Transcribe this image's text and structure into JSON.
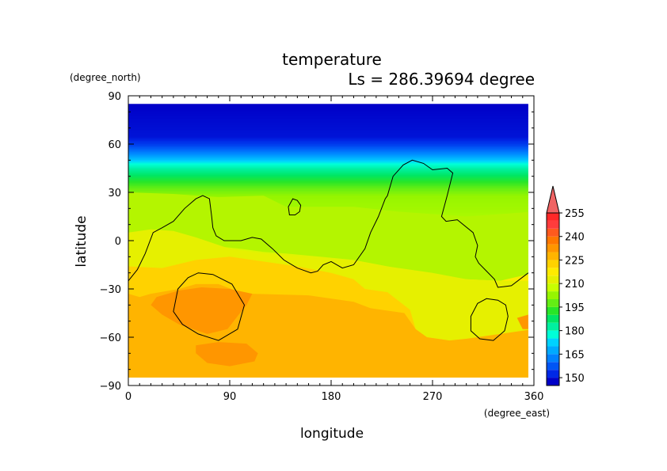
{
  "chart_data": {
    "type": "heatmap",
    "title": "temperature",
    "subtitle": "Ls = 286.39694 degree",
    "xlabel": "longitude",
    "ylabel": "latitude",
    "x_unit": "(degree_east)",
    "y_unit": "(degree_north)",
    "xlim": [
      0,
      360
    ],
    "ylim": [
      -90,
      90
    ],
    "x_ticks": [
      "0",
      "90",
      "180",
      "270",
      "360"
    ],
    "x_tick_values": [
      0,
      90,
      180,
      270,
      360
    ],
    "y_ticks": [
      "90",
      "60",
      "30",
      "0",
      "−30",
      "−60",
      "−90"
    ],
    "y_tick_values": [
      90,
      60,
      30,
      0,
      -30,
      -60,
      -90
    ],
    "data_lat_range": [
      -85,
      85
    ],
    "colorbar": {
      "levels": [
        145,
        150,
        155,
        160,
        165,
        170,
        175,
        180,
        185,
        190,
        195,
        200,
        205,
        210,
        215,
        220,
        225,
        230,
        235,
        240,
        245,
        250,
        255
      ],
      "labels": [
        "150",
        "165",
        "180",
        "195",
        "210",
        "225",
        "240",
        "255"
      ],
      "colors": [
        "#0000c8",
        "#0028e6",
        "#0055f5",
        "#0082ff",
        "#00aaff",
        "#00d2ff",
        "#00ffd8",
        "#00f0a0",
        "#00e664",
        "#28e628",
        "#64ee14",
        "#96f500",
        "#c8ff00",
        "#e6f000",
        "#ffeb00",
        "#ffd200",
        "#ffb400",
        "#ff9600",
        "#ff7800",
        "#ff5a1e",
        "#ff3c3c",
        "#ff2828"
      ],
      "over_color": "#f06464"
    },
    "fill_levels": [
      {
        "value": 215,
        "color": "#b4f500",
        "polygon": [
          [
            0,
            30
          ],
          [
            40,
            29
          ],
          [
            80,
            27
          ],
          [
            120,
            28
          ],
          [
            140,
            21
          ],
          [
            200,
            21
          ],
          [
            240,
            18
          ],
          [
            300,
            15
          ],
          [
            360,
            18
          ],
          [
            360,
            -20
          ],
          [
            330,
            -25
          ],
          [
            300,
            -24
          ],
          [
            260,
            -20
          ],
          [
            230,
            -16
          ],
          [
            200,
            -12
          ],
          [
            170,
            -10
          ],
          [
            140,
            -8
          ],
          [
            120,
            -7
          ],
          [
            100,
            -5
          ],
          [
            60,
            -2
          ],
          [
            30,
            -2
          ],
          [
            15,
            -5
          ],
          [
            0,
            -6
          ]
        ]
      },
      {
        "value": 220,
        "color": "#e6f000",
        "polygon": [
          [
            0,
            5
          ],
          [
            20,
            7
          ],
          [
            40,
            6
          ],
          [
            60,
            2
          ],
          [
            90,
            -5
          ],
          [
            120,
            -8
          ],
          [
            150,
            -10
          ],
          [
            180,
            -12
          ],
          [
            210,
            -14
          ],
          [
            240,
            -17
          ],
          [
            270,
            -20
          ],
          [
            300,
            -24
          ],
          [
            330,
            -25
          ],
          [
            360,
            -25
          ],
          [
            360,
            -90
          ],
          [
            0,
            -90
          ]
        ]
      },
      {
        "value": 225,
        "color": "#ffd200",
        "polygon": [
          [
            0,
            -16
          ],
          [
            30,
            -17
          ],
          [
            60,
            -12
          ],
          [
            90,
            -10
          ],
          [
            120,
            -13
          ],
          [
            150,
            -16
          ],
          [
            180,
            -20
          ],
          [
            200,
            -24
          ],
          [
            210,
            -30
          ],
          [
            230,
            -32
          ],
          [
            250,
            -43
          ],
          [
            255,
            -55
          ],
          [
            265,
            -60
          ],
          [
            285,
            -62
          ],
          [
            300,
            -61
          ],
          [
            330,
            -58
          ],
          [
            360,
            -55
          ],
          [
            360,
            -90
          ],
          [
            0,
            -90
          ]
        ]
      },
      {
        "value": 230,
        "color": "#ffb400",
        "polygon": [
          [
            0,
            -33
          ],
          [
            10,
            -35
          ],
          [
            20,
            -33
          ],
          [
            45,
            -30
          ],
          [
            60,
            -27
          ],
          [
            80,
            -27
          ],
          [
            95,
            -31
          ],
          [
            110,
            -33
          ],
          [
            160,
            -34
          ],
          [
            200,
            -38
          ],
          [
            215,
            -42
          ],
          [
            245,
            -45
          ],
          [
            255,
            -55
          ],
          [
            265,
            -60
          ],
          [
            285,
            -62
          ],
          [
            300,
            -61
          ],
          [
            330,
            -58
          ],
          [
            360,
            -55
          ],
          [
            360,
            -90
          ],
          [
            0,
            -90
          ]
        ]
      },
      {
        "value": 235,
        "color": "#ff9600",
        "polygon": [
          [
            25,
            -35
          ],
          [
            45,
            -31
          ],
          [
            65,
            -29
          ],
          [
            90,
            -30
          ],
          [
            110,
            -33
          ],
          [
            105,
            -40
          ],
          [
            98,
            -46
          ],
          [
            88,
            -55
          ],
          [
            70,
            -58
          ],
          [
            45,
            -52
          ],
          [
            30,
            -46
          ],
          [
            20,
            -40
          ]
        ]
      },
      {
        "value": 235,
        "color": "#ff9600",
        "polygon": [
          [
            60,
            -65
          ],
          [
            80,
            -63
          ],
          [
            105,
            -64
          ],
          [
            115,
            -70
          ],
          [
            112,
            -75
          ],
          [
            90,
            -78
          ],
          [
            70,
            -76
          ],
          [
            60,
            -70
          ]
        ]
      },
      {
        "value": 235,
        "color": "#ff9600",
        "polygon": [
          [
            345,
            -48
          ],
          [
            355,
            -46
          ],
          [
            360,
            -48
          ],
          [
            360,
            -55
          ],
          [
            350,
            -55
          ]
        ]
      }
    ],
    "topography_contours": [
      {
        "closed": false,
        "points": [
          [
            0,
            -25
          ],
          [
            8,
            -18
          ],
          [
            15,
            -8
          ],
          [
            22,
            5
          ],
          [
            30,
            8
          ],
          [
            40,
            12
          ],
          [
            50,
            20
          ],
          [
            60,
            26
          ],
          [
            66,
            28
          ],
          [
            72,
            26
          ],
          [
            74,
            15
          ],
          [
            75,
            8
          ],
          [
            78,
            3
          ],
          [
            85,
            0
          ],
          [
            100,
            0
          ],
          [
            110,
            2
          ],
          [
            118,
            1
          ],
          [
            128,
            -5
          ],
          [
            138,
            -12
          ],
          [
            150,
            -17
          ],
          [
            162,
            -20
          ],
          [
            168,
            -19
          ],
          [
            173,
            -15
          ],
          [
            180,
            -13
          ],
          [
            190,
            -17
          ],
          [
            200,
            -15
          ],
          [
            210,
            -5
          ],
          [
            215,
            5
          ],
          [
            222,
            15
          ],
          [
            228,
            26
          ],
          [
            230,
            28
          ],
          [
            235,
            40
          ],
          [
            244,
            47
          ],
          [
            252,
            50
          ],
          [
            262,
            48
          ],
          [
            270,
            44
          ],
          [
            283,
            45
          ],
          [
            288,
            42
          ],
          [
            283,
            28
          ],
          [
            278,
            15
          ],
          [
            282,
            12
          ],
          [
            292,
            13
          ],
          [
            306,
            5
          ],
          [
            310,
            -3
          ],
          [
            308,
            -10
          ],
          [
            311,
            -14
          ],
          [
            318,
            -19
          ],
          [
            325,
            -24
          ],
          [
            328,
            -29
          ],
          [
            340,
            -28
          ],
          [
            355,
            -20
          ]
        ]
      },
      {
        "closed": true,
        "points": [
          [
            142,
            21
          ],
          [
            146,
            26
          ],
          [
            150,
            25
          ],
          [
            153,
            22
          ],
          [
            152,
            18
          ],
          [
            148,
            16
          ],
          [
            143,
            16
          ]
        ]
      },
      {
        "closed": true,
        "points": [
          [
            62,
            -20
          ],
          [
            75,
            -21
          ],
          [
            92,
            -27
          ],
          [
            103,
            -40
          ],
          [
            97,
            -55
          ],
          [
            80,
            -62
          ],
          [
            62,
            -58
          ],
          [
            48,
            -52
          ],
          [
            40,
            -44
          ],
          [
            44,
            -30
          ],
          [
            53,
            -23
          ]
        ]
      },
      {
        "closed": true,
        "points": [
          [
            318,
            -36
          ],
          [
            328,
            -37
          ],
          [
            335,
            -40
          ],
          [
            337,
            -47
          ],
          [
            334,
            -56
          ],
          [
            324,
            -62
          ],
          [
            312,
            -61
          ],
          [
            304,
            -56
          ],
          [
            304,
            -47
          ],
          [
            310,
            -39
          ]
        ]
      }
    ]
  }
}
